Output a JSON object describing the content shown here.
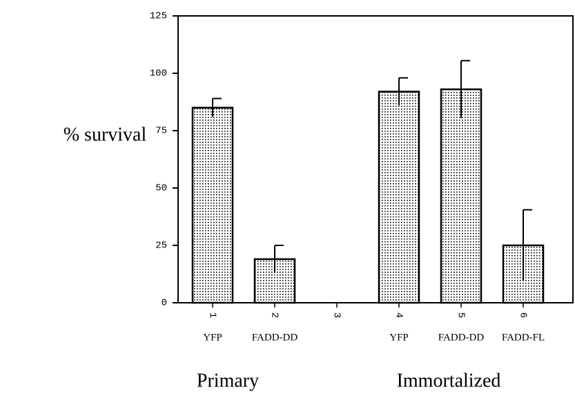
{
  "chart_data": {
    "type": "bar",
    "y_label": "% survival",
    "categories": [
      "1",
      "2",
      "3",
      "4",
      "5",
      "6"
    ],
    "sublabels": [
      "YFP",
      "FADD-DD",
      null,
      "YFP",
      "FADD-DD",
      "FADD-FL"
    ],
    "groups": [
      "Primary",
      "Immortalized"
    ],
    "values": [
      85,
      19,
      null,
      92,
      93,
      25
    ],
    "errors": [
      4,
      6,
      null,
      6,
      12.5,
      15.5
    ],
    "color": "#d8d8d8",
    "ylim": [
      0,
      125
    ],
    "yticks": [
      0,
      25,
      50,
      75,
      100,
      125
    ],
    "grid": false
  }
}
